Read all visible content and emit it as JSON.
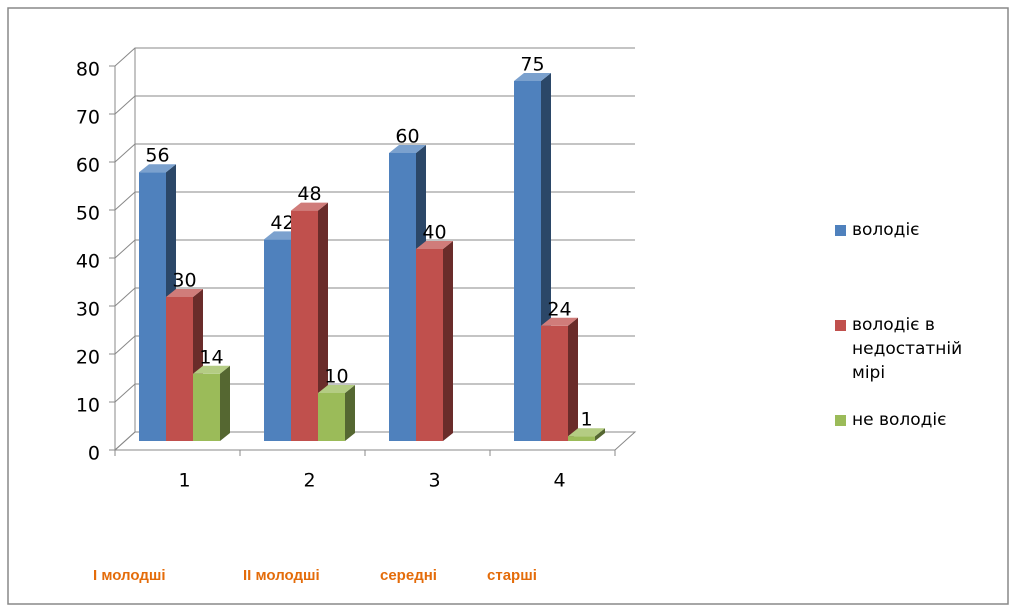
{
  "chart_data": {
    "type": "bar3d",
    "categories": [
      "1",
      "2",
      "3",
      "4"
    ],
    "series": [
      {
        "name": "володіє",
        "color": "#4f81bd",
        "values": [
          56,
          42,
          60,
          75
        ]
      },
      {
        "name": "володіє в недостатній мірі",
        "color": "#c0504d",
        "values": [
          30,
          48,
          40,
          24
        ]
      },
      {
        "name": "не володіє",
        "color": "#9bbb59",
        "values": [
          14,
          10,
          null,
          1
        ]
      }
    ],
    "ylim": [
      0,
      80
    ],
    "yticks": [
      0,
      10,
      20,
      30,
      40,
      50,
      60,
      70,
      80
    ],
    "grid": true,
    "legend": "right",
    "annotations": [
      "І молодші",
      "ІІ молодші",
      "середні",
      "старші"
    ]
  }
}
